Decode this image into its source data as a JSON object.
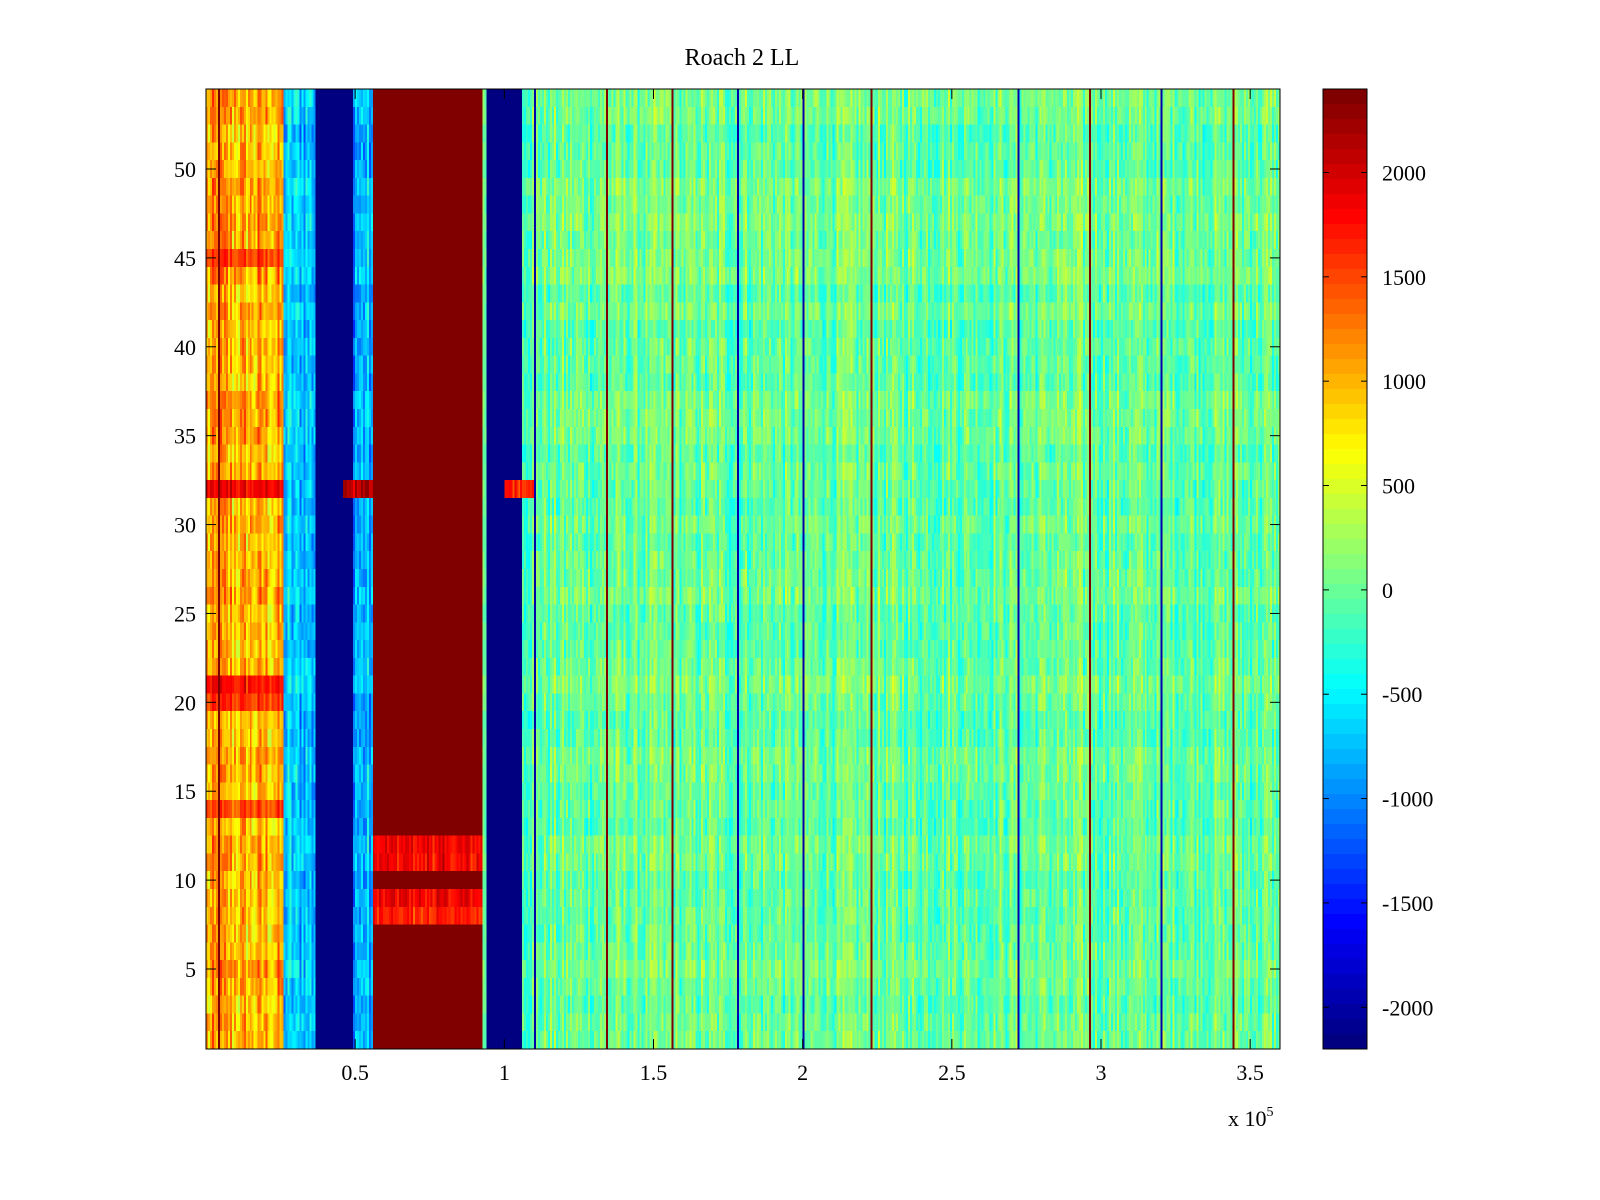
{
  "chart_data": {
    "type": "heatmap",
    "title": "Roach 2 LL",
    "xlabel": "",
    "ylabel": "",
    "x_multiplier_label": {
      "base": "x 10",
      "exponent": "5"
    },
    "xlim": [
      0,
      360000
    ],
    "ylim": [
      0.5,
      54.5
    ],
    "xticks": [
      {
        "value": 50000,
        "label": "0.5"
      },
      {
        "value": 100000,
        "label": "1"
      },
      {
        "value": 150000,
        "label": "1.5"
      },
      {
        "value": 200000,
        "label": "2"
      },
      {
        "value": 250000,
        "label": "2.5"
      },
      {
        "value": 300000,
        "label": "3"
      },
      {
        "value": 350000,
        "label": "3.5"
      }
    ],
    "yticks": [
      {
        "value": 5,
        "label": "5"
      },
      {
        "value": 10,
        "label": "10"
      },
      {
        "value": 15,
        "label": "15"
      },
      {
        "value": 20,
        "label": "20"
      },
      {
        "value": 25,
        "label": "25"
      },
      {
        "value": 30,
        "label": "30"
      },
      {
        "value": 35,
        "label": "35"
      },
      {
        "value": 40,
        "label": "40"
      },
      {
        "value": 45,
        "label": "45"
      },
      {
        "value": 50,
        "label": "50"
      }
    ],
    "colorbar": {
      "colormap": "jet",
      "clim": [
        -2200,
        2400
      ],
      "ticks": [
        {
          "value": -2000,
          "label": "-2000"
        },
        {
          "value": -1500,
          "label": "-1500"
        },
        {
          "value": -1000,
          "label": "-1000"
        },
        {
          "value": -500,
          "label": "-500"
        },
        {
          "value": 0,
          "label": "0"
        },
        {
          "value": 500,
          "label": "500"
        },
        {
          "value": 1000,
          "label": "1000"
        },
        {
          "value": 1500,
          "label": "1500"
        },
        {
          "value": 2000,
          "label": "2000"
        }
      ]
    },
    "rows": 54,
    "bands": [
      {
        "x_start": 0,
        "x_end": 26000,
        "value": 1000,
        "noise": 500
      },
      {
        "x_start": 26000,
        "x_end": 37000,
        "value": -700,
        "noise": 450
      },
      {
        "x_start": 37000,
        "x_end": 49000,
        "value": -2200,
        "noise": 0
      },
      {
        "x_start": 49000,
        "x_end": 56000,
        "value": -800,
        "noise": 450
      },
      {
        "x_start": 56000,
        "x_end": 93000,
        "value": 2400,
        "noise": 0
      },
      {
        "x_start": 93000,
        "x_end": 94000,
        "value": 0,
        "noise": 200
      },
      {
        "x_start": 94000,
        "x_end": 106000,
        "value": -2200,
        "noise": 0
      },
      {
        "x_start": 106000,
        "x_end": 360000,
        "value": 0,
        "noise": 380
      }
    ],
    "highlight_rows": [
      {
        "row": 32,
        "x_start": 0,
        "x_end": 26000,
        "value": 1900
      },
      {
        "row": 32,
        "x_start": 46000,
        "x_end": 56000,
        "value": 2200
      },
      {
        "row": 32,
        "x_start": 100000,
        "x_end": 110000,
        "value": 1800
      },
      {
        "row": 21,
        "x_start": 0,
        "x_end": 26000,
        "value": 1700
      },
      {
        "row": 20,
        "x_start": 0,
        "x_end": 26000,
        "value": 1600
      },
      {
        "row": 45,
        "x_start": 0,
        "x_end": 26000,
        "value": 1500
      },
      {
        "row": 14,
        "x_start": 0,
        "x_end": 26000,
        "value": 1500
      },
      {
        "row": 12,
        "x_start": 56000,
        "x_end": 93000,
        "value": 1800
      },
      {
        "row": 11,
        "x_start": 56000,
        "x_end": 93000,
        "value": 1800
      },
      {
        "row": 8,
        "x_start": 56000,
        "x_end": 93000,
        "value": 1700
      },
      {
        "row": 9,
        "x_start": 56000,
        "x_end": 93000,
        "value": 1900
      }
    ],
    "vertical_lines": [
      {
        "x": 4000,
        "value": 2400
      },
      {
        "x": 110000,
        "value": -2000
      },
      {
        "x": 134000,
        "value": 2400
      },
      {
        "x": 156000,
        "value": 2400
      },
      {
        "x": 178000,
        "value": -2000
      },
      {
        "x": 200000,
        "value": -2000
      },
      {
        "x": 223000,
        "value": 2400
      },
      {
        "x": 272000,
        "value": -2000
      },
      {
        "x": 296000,
        "value": 2400
      },
      {
        "x": 320000,
        "value": -2000
      },
      {
        "x": 344000,
        "value": 2400
      }
    ]
  }
}
